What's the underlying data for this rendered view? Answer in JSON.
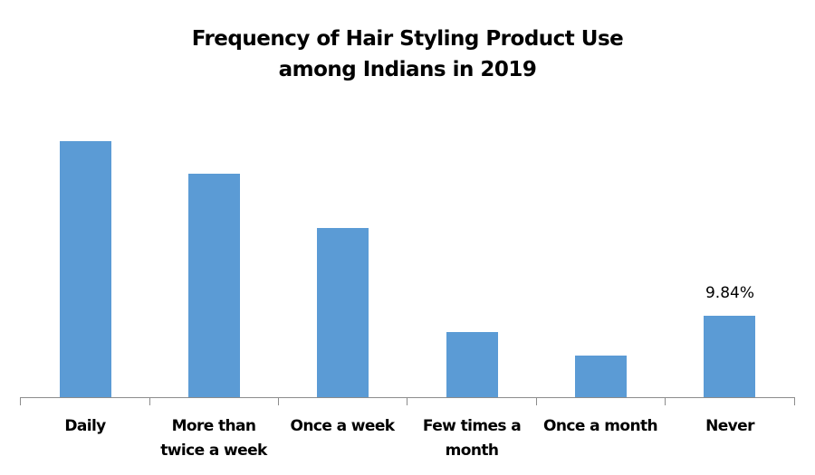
{
  "chart_data": {
    "type": "bar",
    "title": "Frequency of Hair Styling Product Use among Indians in 2019",
    "title_lines": [
      "Frequency of Hair Styling Product Use",
      "among Indians in 2019"
    ],
    "categories": [
      "Daily",
      "More than twice a week",
      "Once a week",
      "Few times a month",
      "Once a month",
      "Never"
    ],
    "category_lines": [
      [
        "Daily"
      ],
      [
        "More than",
        "twice a week"
      ],
      [
        "Once a week"
      ],
      [
        "Few times a",
        "month"
      ],
      [
        "Once a month"
      ],
      [
        "Never"
      ]
    ],
    "values": [
      30.7,
      26.8,
      20.3,
      7.9,
      5.1,
      9.84
    ],
    "unit": "%",
    "data_labels": [
      null,
      null,
      null,
      null,
      null,
      "9.84%"
    ],
    "xlabel": "",
    "ylabel": "",
    "ylim": [
      0,
      32
    ],
    "grid": false,
    "legend": false,
    "bar_color": "#5b9bd5",
    "axis_color": "#8c8c8c"
  }
}
